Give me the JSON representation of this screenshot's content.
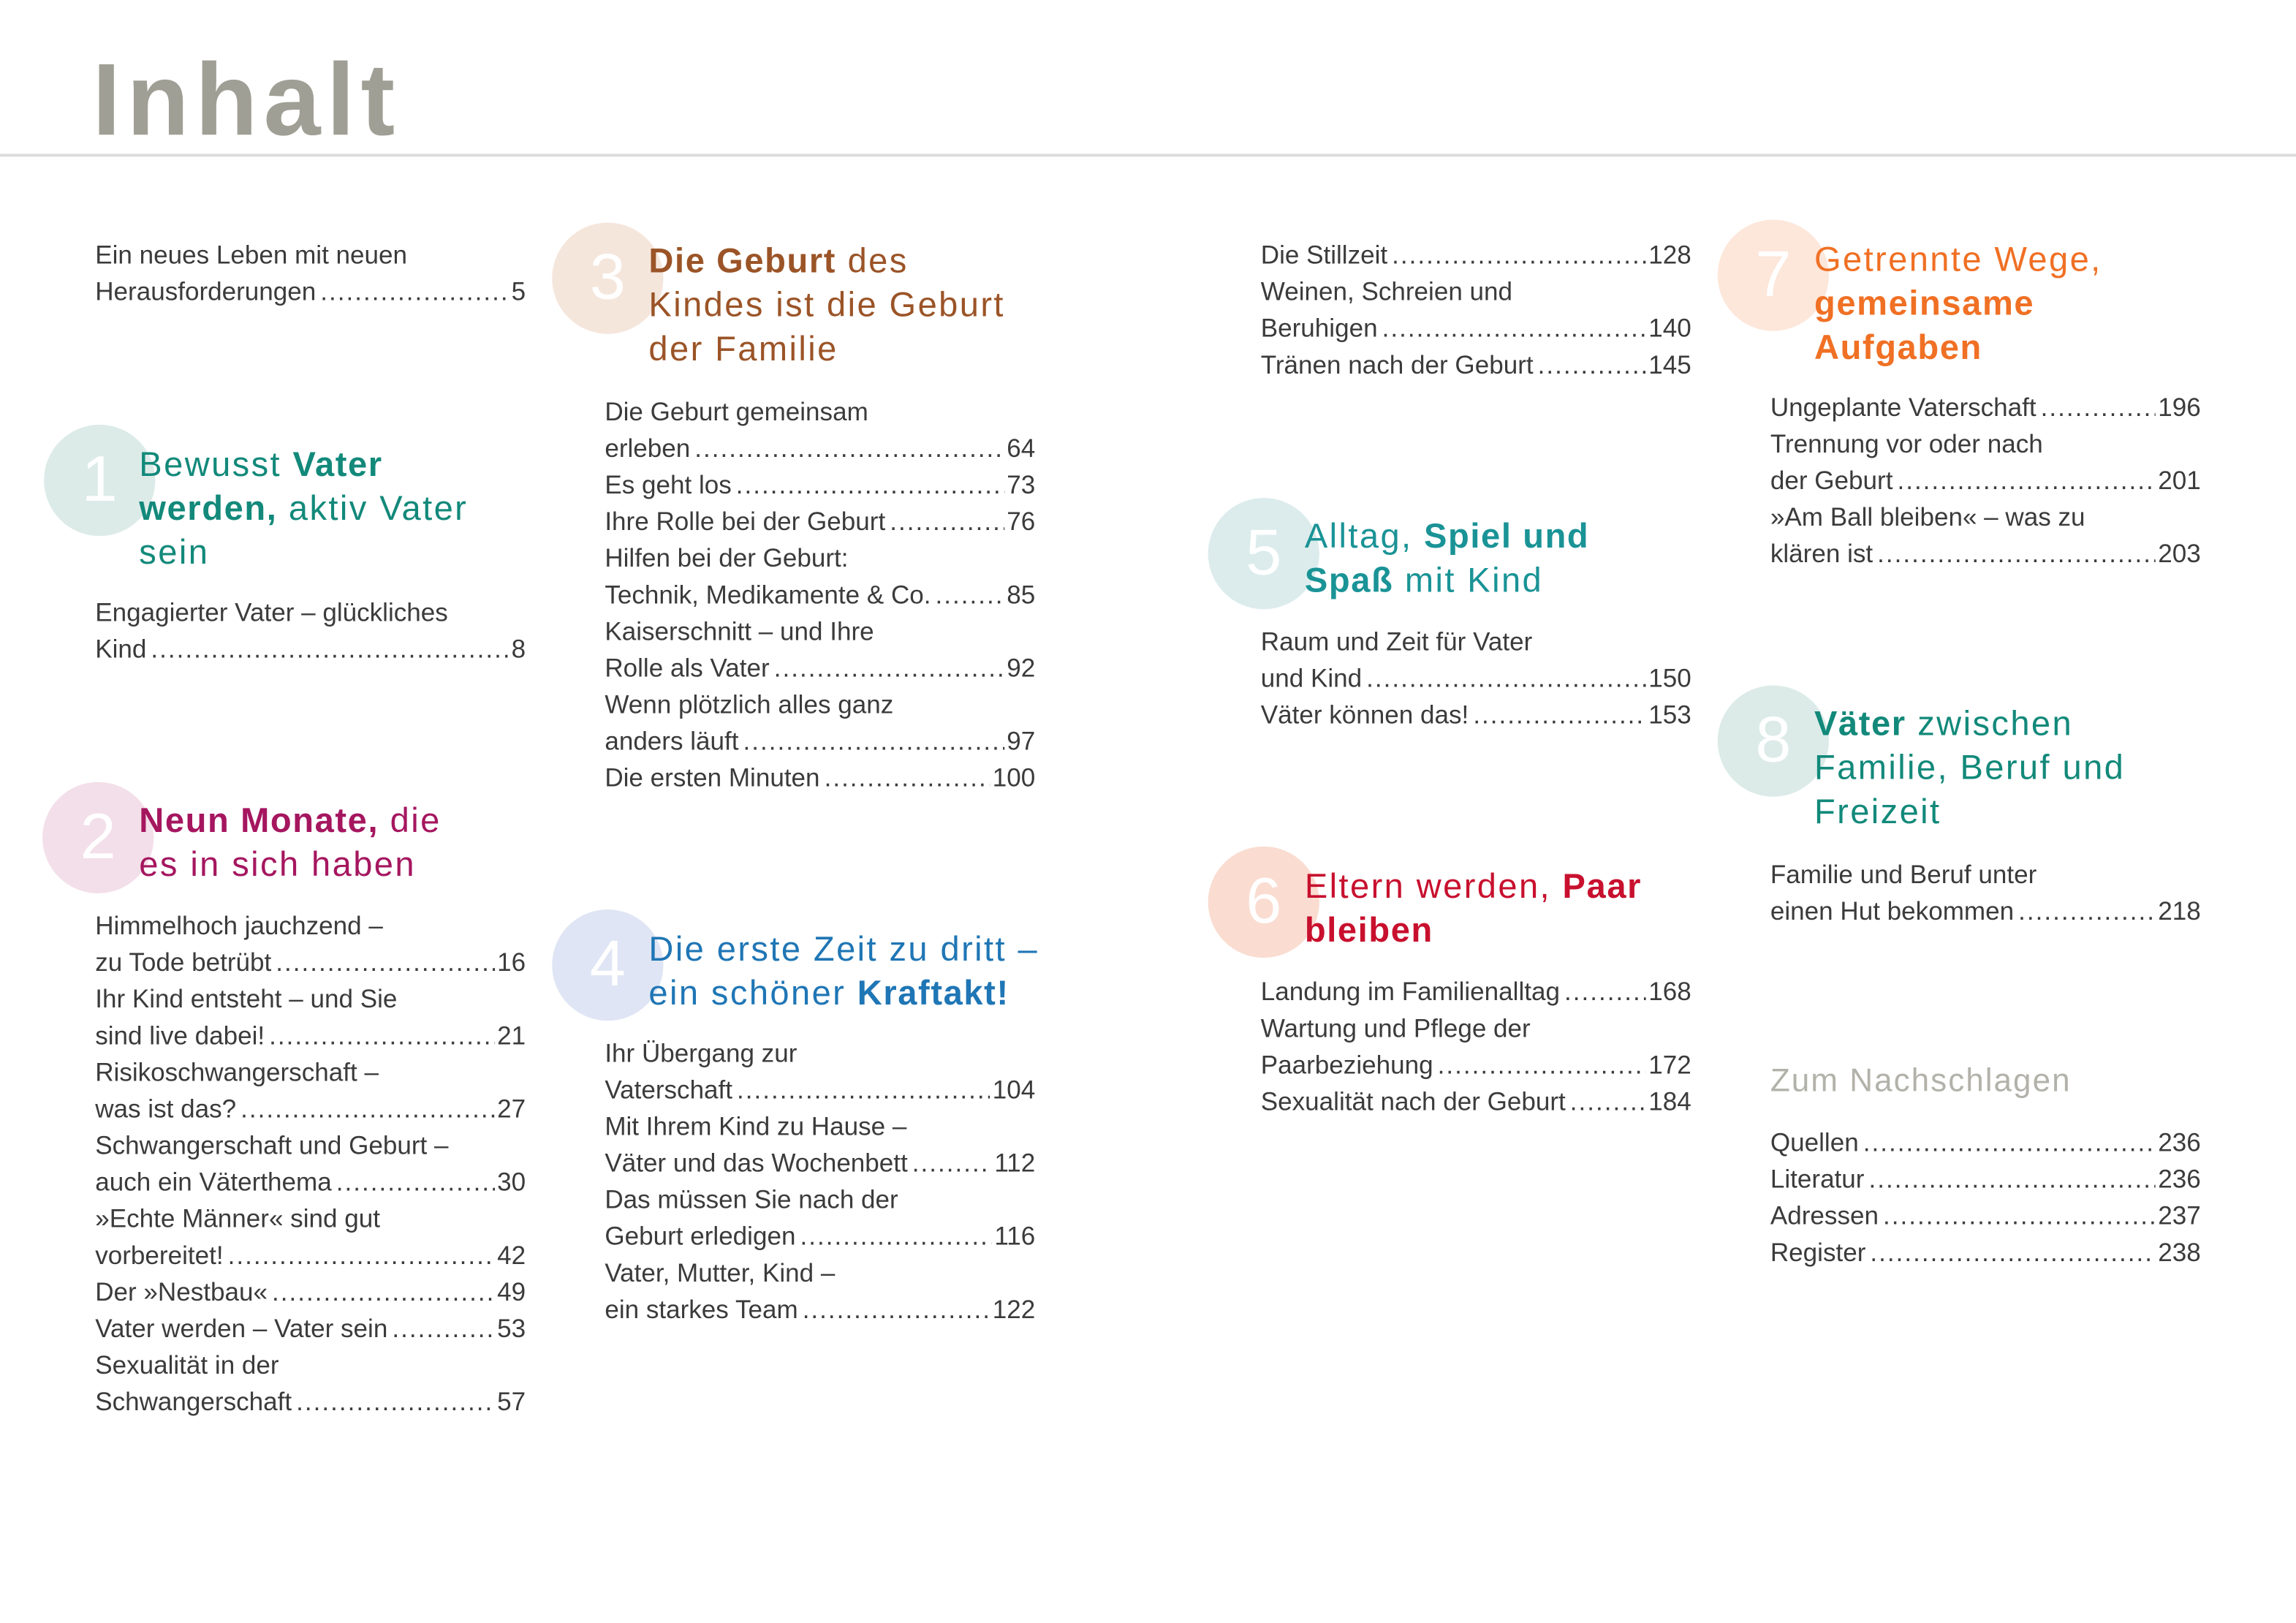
{
  "title": "Inhalt",
  "intro": {
    "entries": [
      {
        "lines": [
          "Ein neues Leben mit neuen",
          "Herausforderungen"
        ],
        "page": "5"
      }
    ]
  },
  "chapters": [
    {
      "id": "c1",
      "number": "1",
      "color": "#12897a",
      "circle_color": "#dcebe8",
      "heading": [
        [
          {
            "t": "Bewusst ",
            "b": false
          },
          {
            "t": "Vater",
            "b": true
          }
        ],
        [
          {
            "t": "werden,",
            "b": true
          },
          {
            "t": " aktiv Vater",
            "b": false
          }
        ],
        [
          {
            "t": "sein",
            "b": false
          }
        ]
      ],
      "entries": [
        {
          "lines": [
            "Engagierter Vater – glückliches",
            "Kind"
          ],
          "page": "8"
        }
      ]
    },
    {
      "id": "c2",
      "number": "2",
      "color": "#a5165f",
      "circle_color": "#f3dfe9",
      "heading": [
        [
          {
            "t": "Neun Monate,",
            "b": true
          },
          {
            "t": " die",
            "b": false
          }
        ],
        [
          {
            "t": "es in sich haben",
            "b": false
          }
        ]
      ],
      "entries": [
        {
          "lines": [
            "Himmelhoch jauchzend –",
            "zu Tode betrübt"
          ],
          "page": "16"
        },
        {
          "lines": [
            "Ihr Kind entsteht – und Sie",
            "sind live dabei!"
          ],
          "page": "21"
        },
        {
          "lines": [
            "Risikoschwangerschaft –",
            "was ist das?"
          ],
          "page": "27"
        },
        {
          "lines": [
            "Schwangerschaft und Geburt –",
            "auch ein Väterthema"
          ],
          "page": "30"
        },
        {
          "lines": [
            "»Echte Männer« sind gut",
            "vorbereitet!"
          ],
          "page": "42"
        },
        {
          "lines": [
            "Der »Nestbau«"
          ],
          "page": "49"
        },
        {
          "lines": [
            "Vater werden – Vater sein"
          ],
          "page": "53"
        },
        {
          "lines": [
            "Sexualität in der",
            "Schwangerschaft"
          ],
          "page": "57"
        }
      ]
    },
    {
      "id": "c3",
      "number": "3",
      "color": "#9b5427",
      "circle_color": "#f5e6dc",
      "heading": [
        [
          {
            "t": "Die Geburt",
            "b": true
          },
          {
            "t": " des",
            "b": false
          }
        ],
        [
          {
            "t": "Kindes ist die Geburt",
            "b": false
          }
        ],
        [
          {
            "t": "der Familie",
            "b": false
          }
        ]
      ],
      "entries": [
        {
          "lines": [
            "Die Geburt gemeinsam",
            "erleben"
          ],
          "page": "64"
        },
        {
          "lines": [
            "Es geht los"
          ],
          "page": "73"
        },
        {
          "lines": [
            "Ihre Rolle bei der Geburt"
          ],
          "page": "76"
        },
        {
          "lines": [
            "Hilfen bei der Geburt:",
            "Technik, Medikamente & Co."
          ],
          "page": "85"
        },
        {
          "lines": [
            "Kaiserschnitt – und Ihre",
            "Rolle als Vater"
          ],
          "page": "92"
        },
        {
          "lines": [
            "Wenn plötzlich alles ganz",
            "anders läuft"
          ],
          "page": "97"
        },
        {
          "lines": [
            "Die ersten Minuten"
          ],
          "page": "100"
        }
      ]
    },
    {
      "id": "c4",
      "number": "4",
      "color": "#1f76b5",
      "circle_color": "#dfe5f4",
      "heading": [
        [
          {
            "t": "Die erste Zeit zu dritt –",
            "b": false
          }
        ],
        [
          {
            "t": "ein schöner ",
            "b": false
          },
          {
            "t": "Kraftakt!",
            "b": true
          }
        ]
      ],
      "entries": [
        {
          "lines": [
            "Ihr Übergang zur",
            "Vaterschaft"
          ],
          "page": "104"
        },
        {
          "lines": [
            "Mit Ihrem Kind zu Hause –",
            "Väter und das Wochenbett"
          ],
          "page": "112"
        },
        {
          "lines": [
            "Das müssen Sie nach der",
            "Geburt erledigen"
          ],
          "page": "116"
        },
        {
          "lines": [
            "Vater, Mutter, Kind –",
            "ein starkes Team"
          ],
          "page": "122"
        }
      ]
    },
    {
      "id": "c4b",
      "number": "",
      "color": "",
      "circle_color": "",
      "heading": [],
      "entries": [
        {
          "lines": [
            "Die Stillzeit"
          ],
          "page": "128"
        },
        {
          "lines": [
            "Weinen, Schreien und",
            "Beruhigen"
          ],
          "page": "140"
        },
        {
          "lines": [
            "Tränen nach der Geburt"
          ],
          "page": "145"
        }
      ]
    },
    {
      "id": "c5",
      "number": "5",
      "color": "#1a9396",
      "circle_color": "#dcecec",
      "heading": [
        [
          {
            "t": "Alltag, ",
            "b": false
          },
          {
            "t": "Spiel und",
            "b": true
          }
        ],
        [
          {
            "t": "Spaß",
            "b": true
          },
          {
            "t": " mit Kind",
            "b": false
          }
        ]
      ],
      "entries": [
        {
          "lines": [
            "Raum und Zeit für Vater",
            "und Kind"
          ],
          "page": "150"
        },
        {
          "lines": [
            "Väter können das!"
          ],
          "page": "153"
        }
      ]
    },
    {
      "id": "c6",
      "number": "6",
      "color": "#c8102e",
      "circle_color": "#fadcd1",
      "heading": [
        [
          {
            "t": "Eltern werden, ",
            "b": false
          },
          {
            "t": "Paar",
            "b": true
          }
        ],
        [
          {
            "t": "bleiben",
            "b": true
          }
        ]
      ],
      "entries": [
        {
          "lines": [
            "Landung im Familienalltag"
          ],
          "page": "168"
        },
        {
          "lines": [
            "Wartung und Pflege der",
            "Paarbeziehung"
          ],
          "page": "172"
        },
        {
          "lines": [
            "Sexualität nach der Geburt"
          ],
          "page": "184"
        }
      ]
    },
    {
      "id": "c7",
      "number": "7",
      "color": "#f07024",
      "circle_color": "#fde7da",
      "heading": [
        [
          {
            "t": "Getrennte Wege,",
            "b": false
          }
        ],
        [
          {
            "t": "gemeinsame",
            "b": true
          }
        ],
        [
          {
            "t": "Aufgaben",
            "b": true
          }
        ]
      ],
      "entries": [
        {
          "lines": [
            "Ungeplante Vaterschaft"
          ],
          "page": "196"
        },
        {
          "lines": [
            "Trennung vor oder nach",
            "der Geburt"
          ],
          "page": "201"
        },
        {
          "lines": [
            "»Am Ball bleiben« – was zu",
            "klären ist"
          ],
          "page": "203"
        }
      ]
    },
    {
      "id": "c8",
      "number": "8",
      "color": "#12897a",
      "circle_color": "#dcebe8",
      "heading": [
        [
          {
            "t": "Väter",
            "b": true
          },
          {
            "t": " zwischen",
            "b": false
          }
        ],
        [
          {
            "t": "Familie, Beruf und",
            "b": false
          }
        ],
        [
          {
            "t": "Freizeit",
            "b": false
          }
        ]
      ],
      "entries": [
        {
          "lines": [
            "Familie und Beruf unter",
            "einen Hut bekommen"
          ],
          "page": "218"
        }
      ]
    }
  ],
  "reference": {
    "title": "Zum Nachschlagen",
    "entries": [
      {
        "lines": [
          "Quellen"
        ],
        "page": "236"
      },
      {
        "lines": [
          "Literatur"
        ],
        "page": "236"
      },
      {
        "lines": [
          "Adressen"
        ],
        "page": "237"
      },
      {
        "lines": [
          "Register"
        ],
        "page": "238"
      }
    ]
  }
}
